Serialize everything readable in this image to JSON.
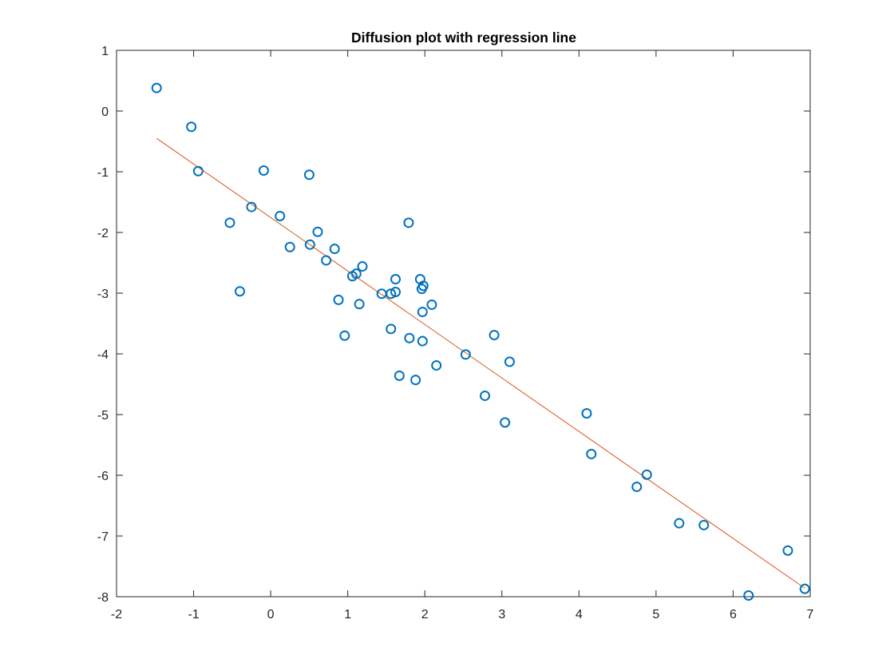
{
  "chart_data": {
    "type": "scatter",
    "title": "Diffusion plot with regression line",
    "xlabel": "",
    "ylabel": "",
    "xlim": [
      -2,
      7
    ],
    "ylim": [
      -8,
      1
    ],
    "xticks": [
      -2,
      -1,
      0,
      1,
      2,
      3,
      4,
      5,
      6,
      7
    ],
    "yticks": [
      -8,
      -7,
      -6,
      -5,
      -4,
      -3,
      -2,
      -1,
      0,
      1
    ],
    "grid": false,
    "legend": "none",
    "colors": {
      "points": "#0072BD",
      "regression": "#D95319",
      "axes": "#262626"
    },
    "points": [
      [
        -1.48,
        0.38
      ],
      [
        -1.03,
        -0.26
      ],
      [
        -0.94,
        -0.99
      ],
      [
        -0.53,
        -1.84
      ],
      [
        -0.25,
        -1.58
      ],
      [
        -0.4,
        -2.97
      ],
      [
        -0.09,
        -0.98
      ],
      [
        0.12,
        -1.73
      ],
      [
        0.25,
        -2.24
      ],
      [
        0.5,
        -1.05
      ],
      [
        0.51,
        -2.2
      ],
      [
        0.61,
        -1.99
      ],
      [
        0.72,
        -2.46
      ],
      [
        0.83,
        -2.27
      ],
      [
        0.88,
        -3.11
      ],
      [
        0.96,
        -3.7
      ],
      [
        1.06,
        -2.72
      ],
      [
        1.11,
        -2.68
      ],
      [
        1.15,
        -3.18
      ],
      [
        1.19,
        -2.56
      ],
      [
        1.44,
        -3.01
      ],
      [
        1.56,
        -3.01
      ],
      [
        1.56,
        -3.59
      ],
      [
        1.62,
        -2.98
      ],
      [
        1.62,
        -2.77
      ],
      [
        1.67,
        -4.36
      ],
      [
        1.79,
        -1.84
      ],
      [
        1.8,
        -3.74
      ],
      [
        1.88,
        -4.43
      ],
      [
        1.94,
        -2.77
      ],
      [
        1.96,
        -2.93
      ],
      [
        1.97,
        -3.79
      ],
      [
        1.98,
        -2.88
      ],
      [
        1.97,
        -3.31
      ],
      [
        2.09,
        -3.19
      ],
      [
        2.15,
        -4.19
      ],
      [
        2.53,
        -4.01
      ],
      [
        2.78,
        -4.69
      ],
      [
        2.9,
        -3.69
      ],
      [
        3.04,
        -5.13
      ],
      [
        3.1,
        -4.13
      ],
      [
        4.1,
        -4.98
      ],
      [
        4.16,
        -5.65
      ],
      [
        4.75,
        -6.19
      ],
      [
        4.88,
        -5.99
      ],
      [
        5.3,
        -6.79
      ],
      [
        5.62,
        -6.82
      ],
      [
        6.2,
        -7.98
      ],
      [
        6.71,
        -7.24
      ],
      [
        6.93,
        -7.87
      ]
    ],
    "regression_line": {
      "x": [
        -1.48,
        6.93
      ],
      "y": [
        -0.45,
        -7.86
      ]
    }
  }
}
